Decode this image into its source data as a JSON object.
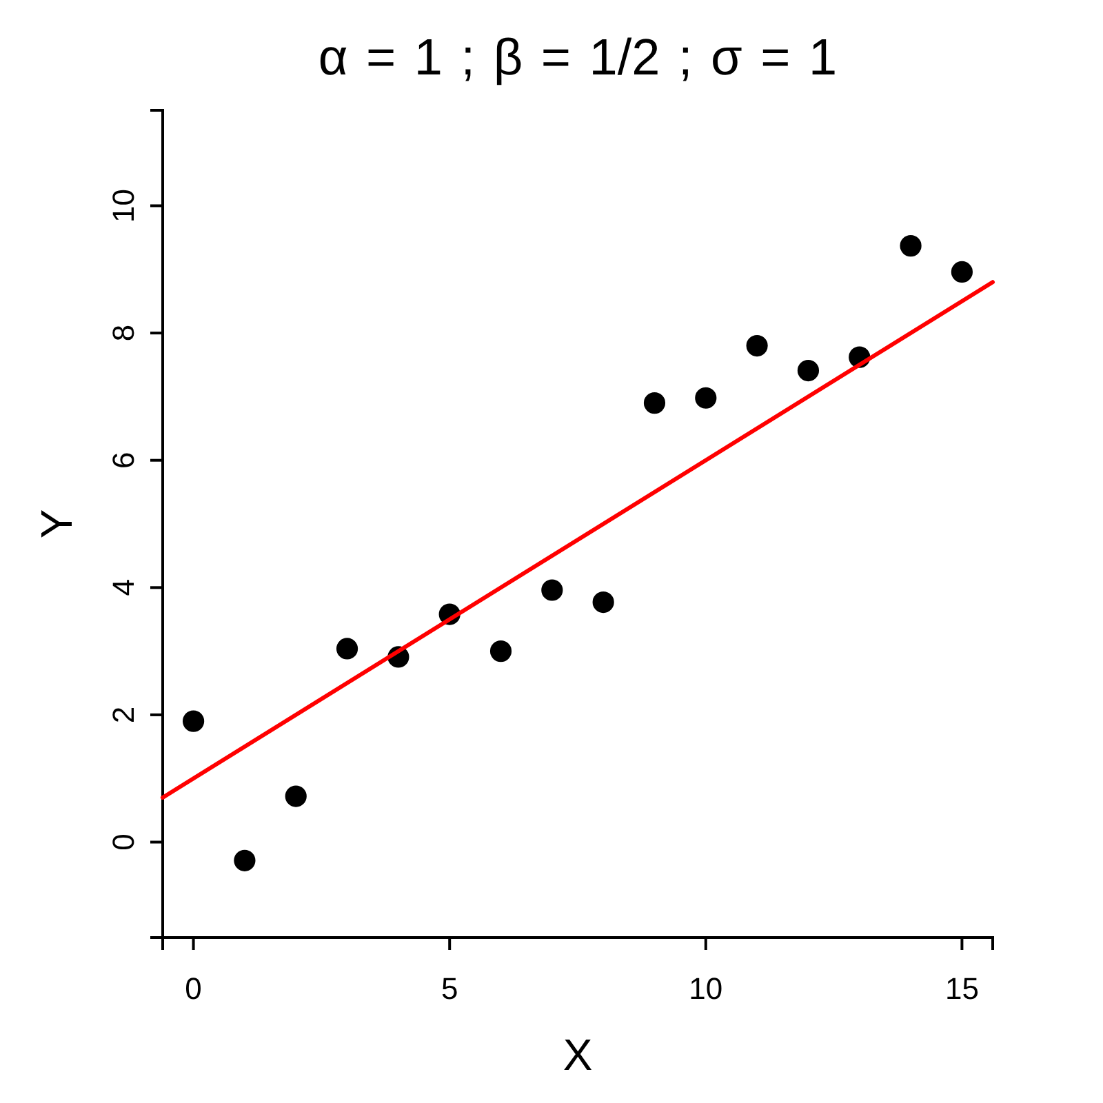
{
  "chart_data": {
    "type": "scatter",
    "title": "α = 1 ; β = 1/2 ; σ = 1",
    "xlabel": "X",
    "ylabel": "Y",
    "xlim": [
      -0.6,
      15.6
    ],
    "ylim": [
      -1.5,
      11.5
    ],
    "xticks": [
      0,
      5,
      10,
      15
    ],
    "yticks": [
      0,
      2,
      4,
      6,
      8,
      10
    ],
    "grid": false,
    "series": [
      {
        "color": "#000000",
        "marker": "circle",
        "x": [
          0,
          1,
          2,
          3,
          4,
          5,
          6,
          7,
          8,
          9,
          10,
          11,
          12,
          13,
          14,
          15
        ],
        "values": [
          1.9,
          -0.29,
          0.72,
          3.04,
          2.91,
          3.58,
          3.0,
          3.96,
          3.77,
          6.9,
          6.98,
          7.8,
          7.41,
          7.62,
          9.37,
          8.96
        ]
      },
      {
        "type": "line",
        "color": "#ff0000",
        "line_style": "solid",
        "x": [
          -0.6,
          15.6
        ],
        "values": [
          0.7,
          8.8
        ]
      }
    ]
  }
}
